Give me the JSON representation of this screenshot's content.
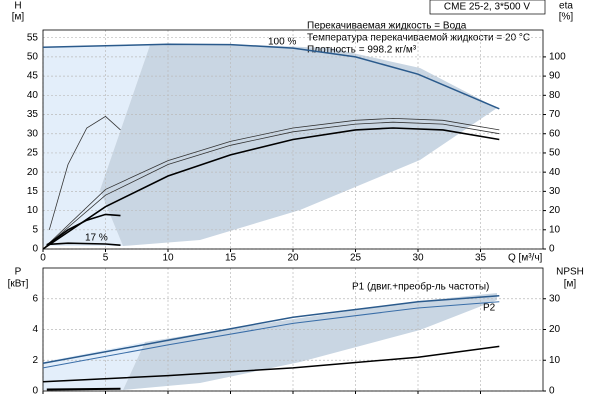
{
  "chart_data": [
    {
      "type": "line",
      "title": "CME 25-2, 3*500 V",
      "y_label": "H",
      "y_unit": "[м]",
      "y2_label": "eta",
      "y2_unit": "[%]",
      "x_label": "Q [м³/ч]",
      "annotations": [
        "100 %",
        "17 %",
        "Перекачиваемая жидкость = Вода",
        "Температура перекачиваемой жидкости = 20 °C",
        "Плотность = 998.2 кг/м³"
      ],
      "xlim": [
        0,
        40
      ],
      "xticks": [
        0,
        5,
        10,
        15,
        20,
        25,
        30,
        35
      ],
      "ylim": [
        0,
        57
      ],
      "yticks": [
        0,
        5,
        10,
        15,
        20,
        25,
        30,
        35,
        40,
        45,
        50,
        55
      ],
      "y2lim": [
        0,
        114
      ],
      "y2ticks": [
        0,
        10,
        20,
        30,
        40,
        50,
        60,
        70,
        80,
        90,
        100
      ],
      "grid": true,
      "series": [
        {
          "color": "#2a5a8c",
          "line_width": 1.5,
          "x": [
            0,
            5,
            10,
            15,
            20,
            25,
            30,
            36.5
          ],
          "values": [
            52.5,
            52.9,
            53.3,
            53.2,
            52.3,
            50,
            45.5,
            36.5
          ]
        },
        {
          "color": "#000000",
          "line_width": 1.6,
          "x": [
            0.3,
            2,
            5,
            6.2
          ],
          "values": [
            1.2,
            1.5,
            1.3,
            1
          ]
        },
        {
          "color": "#333333",
          "line_width": 0.8,
          "x": [
            0,
            5,
            10,
            15,
            20,
            25,
            28,
            32,
            36.5
          ],
          "values": [
            0,
            15.5,
            23,
            28,
            31.5,
            33.5,
            34,
            33.5,
            31
          ]
        },
        {
          "color": "#333333",
          "line_width": 0.8,
          "x": [
            0,
            5,
            10,
            15,
            20,
            25,
            28,
            32,
            36.5
          ],
          "values": [
            0,
            14,
            22,
            27,
            30.5,
            32.5,
            33,
            32.5,
            30
          ]
        },
        {
          "color": "#000000",
          "line_width": 1.6,
          "x": [
            0,
            5,
            10,
            15,
            20,
            25,
            28,
            32,
            36.5
          ],
          "values": [
            0,
            11,
            19,
            24.5,
            28.5,
            31,
            31.5,
            31,
            28.5
          ]
        },
        {
          "color": "#333333",
          "line_width": 0.8,
          "x": [
            0.5,
            2,
            3.5,
            5,
            6.2
          ],
          "values": [
            5,
            22,
            31.5,
            34.5,
            31
          ]
        },
        {
          "color": "#000000",
          "line_width": 1.6,
          "x": [
            0.3,
            2,
            3.5,
            5,
            6.2
          ],
          "values": [
            1,
            5,
            7.5,
            9,
            8.7
          ]
        }
      ]
    },
    {
      "type": "line",
      "y_label": "P",
      "y_unit": "[кВт]",
      "y2_label": "NPSH",
      "y2_unit": "[м]",
      "annotations": [
        "P1 (двиг.+преобр-ль частоты)",
        "P2"
      ],
      "xlim": [
        0,
        40
      ],
      "xticks": [
        0,
        5,
        10,
        15,
        20,
        25,
        30,
        35
      ],
      "ylim": [
        0,
        8
      ],
      "yticks": [
        0,
        2,
        4,
        6
      ],
      "y2lim": [
        0,
        40
      ],
      "y2ticks": [
        0,
        10,
        20,
        30
      ],
      "grid": true,
      "series": [
        {
          "color": "#2a5a8c",
          "line_width": 1.5,
          "x": [
            0,
            10,
            20,
            30,
            36.5
          ],
          "values": [
            1.8,
            3.3,
            4.8,
            5.8,
            6.2
          ]
        },
        {
          "color": "#3a6ea8",
          "line_width": 1,
          "x": [
            0,
            10,
            20,
            30,
            36.5
          ],
          "values": [
            1.5,
            3.0,
            4.4,
            5.4,
            5.8
          ]
        },
        {
          "color": "#000000",
          "line_width": 1.5,
          "axis": "y2",
          "x": [
            0,
            10,
            20,
            30,
            36.5
          ],
          "values": [
            3,
            5,
            7.5,
            11,
            14.5
          ]
        },
        {
          "color": "#000000",
          "line_width": 2,
          "x": [
            0.3,
            6.2
          ],
          "values": [
            0.1,
            0.15
          ]
        }
      ]
    }
  ]
}
